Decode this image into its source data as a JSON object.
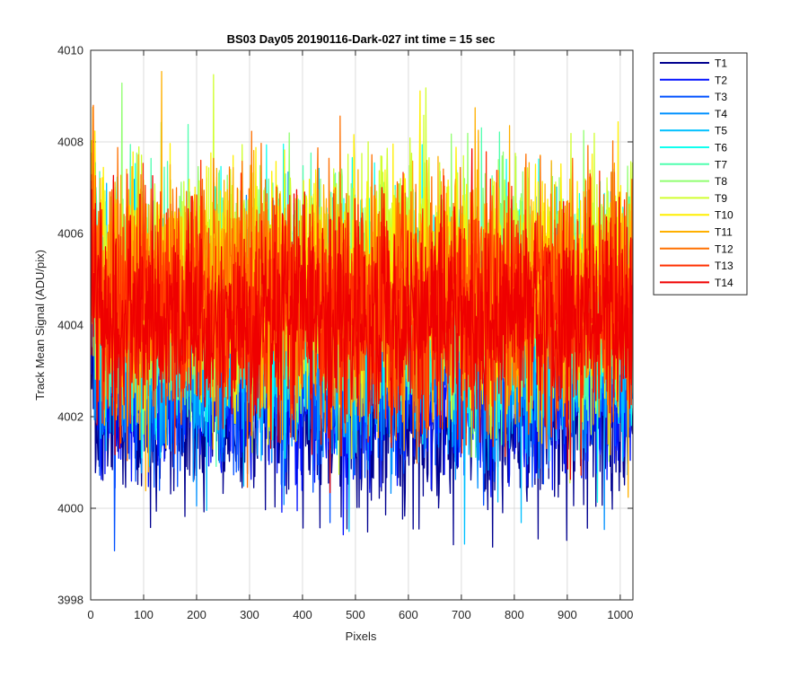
{
  "chart_data": {
    "type": "line",
    "title": "BS03 Day05 20190116-Dark-027 int time = 15 sec",
    "xlabel": "Pixels",
    "ylabel": "Track Mean Signal (ADU/pix)",
    "xlim": [
      0,
      1024
    ],
    "ylim": [
      3998,
      4010
    ],
    "x_ticks": [
      "0",
      "100",
      "200",
      "300",
      "400",
      "500",
      "600",
      "700",
      "800",
      "900",
      "1000"
    ],
    "y_ticks": [
      "3998",
      "4000",
      "4002",
      "4004",
      "4006",
      "4008",
      "4010"
    ],
    "grid": true,
    "legend_position": "outside-top-right",
    "pixel_count": 1024,
    "series": [
      {
        "name": "T1",
        "color": "#00008f",
        "mean": 4002.0,
        "spread": 0.95
      },
      {
        "name": "T2",
        "color": "#0010ff",
        "mean": 4002.6,
        "spread": 1.0
      },
      {
        "name": "T3",
        "color": "#0050ff",
        "mean": 4003.0,
        "spread": 1.05
      },
      {
        "name": "T4",
        "color": "#0090ff",
        "mean": 4003.4,
        "spread": 1.15
      },
      {
        "name": "T5",
        "color": "#00c0ff",
        "mean": 4003.8,
        "spread": 1.2
      },
      {
        "name": "T6",
        "color": "#10ffef",
        "mean": 4004.3,
        "spread": 1.25
      },
      {
        "name": "T7",
        "color": "#50ffaf",
        "mean": 4004.5,
        "spread": 1.25
      },
      {
        "name": "T8",
        "color": "#90ff70",
        "mean": 4004.9,
        "spread": 1.25
      },
      {
        "name": "T9",
        "color": "#d0ff30",
        "mean": 4005.0,
        "spread": 1.25
      },
      {
        "name": "T10",
        "color": "#ffef00",
        "mean": 4004.9,
        "spread": 1.3
      },
      {
        "name": "T11",
        "color": "#ffb000",
        "mean": 4004.7,
        "spread": 1.3
      },
      {
        "name": "T12",
        "color": "#ff7000",
        "mean": 4004.6,
        "spread": 1.3
      },
      {
        "name": "T13",
        "color": "#ff3000",
        "mean": 4004.3,
        "spread": 1.2
      },
      {
        "name": "T14",
        "color": "#ef0000",
        "mean": 4004.2,
        "spread": 1.1
      }
    ]
  }
}
